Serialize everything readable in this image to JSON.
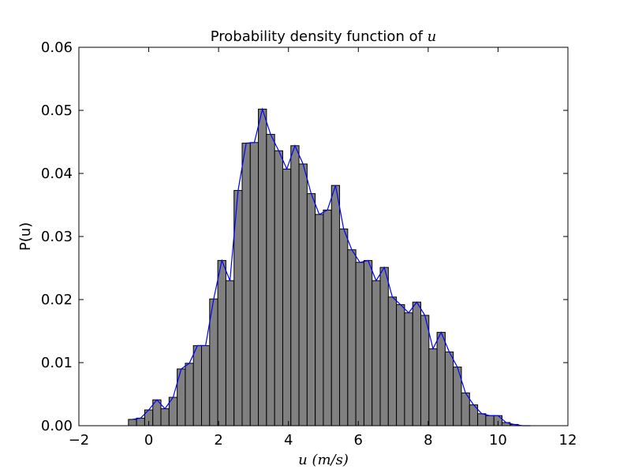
{
  "chart_data": {
    "type": "bar",
    "title": "Probability density function of ",
    "title_var": "u",
    "xlabel_var": "u",
    "xlabel_unit": "(m/s)",
    "ylabel": "P(u)",
    "xlim": [
      -2,
      12
    ],
    "ylim": [
      0,
      0.06
    ],
    "xticks": [
      -2,
      0,
      2,
      4,
      6,
      8,
      10,
      12
    ],
    "xtick_labels": [
      "−2",
      "0",
      "2",
      "4",
      "6",
      "8",
      "10",
      "12"
    ],
    "yticks": [
      0,
      0.01,
      0.02,
      0.03,
      0.04,
      0.05,
      0.06
    ],
    "ytick_labels": [
      "0.00",
      "0.01",
      "0.02",
      "0.03",
      "0.04",
      "0.05",
      "0.06"
    ],
    "grid": false,
    "bar_color": "#808080",
    "line_color": "#0000ff",
    "bin_width": 0.2325,
    "bin_centers": [
      -0.465,
      -0.233,
      0.0,
      0.233,
      0.465,
      0.698,
      0.93,
      1.163,
      1.395,
      1.628,
      1.86,
      2.093,
      2.325,
      2.558,
      2.79,
      3.023,
      3.255,
      3.488,
      3.72,
      3.953,
      4.185,
      4.418,
      4.65,
      4.883,
      5.115,
      5.348,
      5.58,
      5.813,
      6.045,
      6.278,
      6.51,
      6.743,
      6.975,
      7.208,
      7.44,
      7.673,
      7.905,
      8.138,
      8.37,
      8.603,
      8.835,
      9.068,
      9.3,
      9.533,
      9.765,
      9.998,
      10.23,
      10.463,
      10.695,
      10.928
    ],
    "densities": [
      0.001,
      0.0012,
      0.0025,
      0.0041,
      0.0027,
      0.0045,
      0.009,
      0.0099,
      0.0127,
      0.0127,
      0.0201,
      0.0262,
      0.023,
      0.0373,
      0.0448,
      0.0449,
      0.0502,
      0.0462,
      0.0436,
      0.0407,
      0.0444,
      0.0415,
      0.0368,
      0.0335,
      0.0342,
      0.0381,
      0.0312,
      0.0279,
      0.0259,
      0.0262,
      0.023,
      0.0251,
      0.0204,
      0.0192,
      0.0179,
      0.0196,
      0.0175,
      0.0122,
      0.0148,
      0.0117,
      0.0093,
      0.0052,
      0.0033,
      0.0019,
      0.0016,
      0.0016,
      0.0005,
      0.0002,
      0.0,
      0.0
    ]
  }
}
